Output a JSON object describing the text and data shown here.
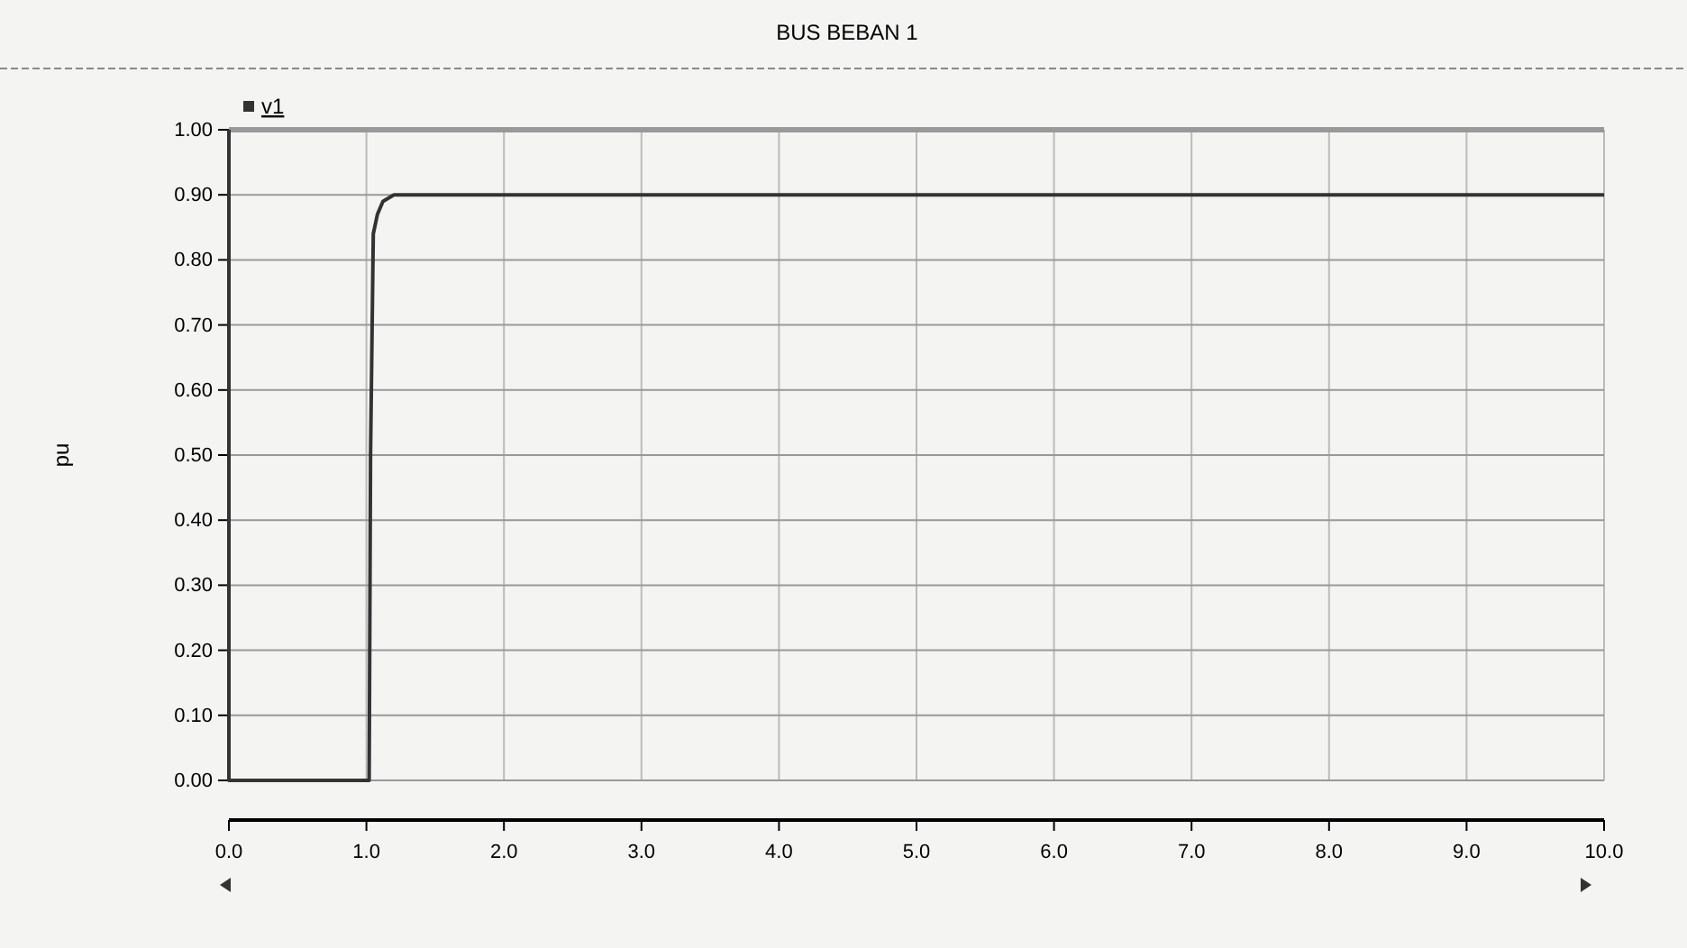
{
  "chart_data": {
    "type": "step",
    "title": "BUS BEBAN 1",
    "ylabel": "pu",
    "series": [
      {
        "name": "v1",
        "color": "#333333",
        "x": [
          0,
          0,
          1.02,
          1.03,
          1.05,
          1.08,
          1.12,
          1.2,
          10
        ],
        "values": [
          1,
          0,
          0,
          0.5,
          0.84,
          0.87,
          0.89,
          0.9,
          0.9
        ]
      }
    ],
    "xlim": [
      0,
      10
    ],
    "xticks": [
      {
        "value": 0,
        "label": "0.0"
      },
      {
        "value": 1,
        "label": "1.0"
      },
      {
        "value": 2,
        "label": "2.0"
      },
      {
        "value": 3,
        "label": "3.0"
      },
      {
        "value": 4,
        "label": "4.0"
      },
      {
        "value": 5,
        "label": "5.0"
      },
      {
        "value": 6,
        "label": "6.0"
      },
      {
        "value": 7,
        "label": "7.0"
      },
      {
        "value": 8,
        "label": "8.0"
      },
      {
        "value": 9,
        "label": "9.0"
      },
      {
        "value": 10,
        "label": "10.0"
      }
    ],
    "ylim": [
      0,
      1
    ],
    "yticks": [
      {
        "value": 0,
        "label": "0.00"
      },
      {
        "value": 0.1,
        "label": "0.10"
      },
      {
        "value": 0.2,
        "label": "0.20"
      },
      {
        "value": 0.3,
        "label": "0.30"
      },
      {
        "value": 0.4,
        "label": "0.40"
      },
      {
        "value": 0.5,
        "label": "0.50"
      },
      {
        "value": 0.6,
        "label": "0.60"
      },
      {
        "value": 0.7,
        "label": "0.70"
      },
      {
        "value": 0.8,
        "label": "0.80"
      },
      {
        "value": 0.9,
        "label": "0.90"
      },
      {
        "value": 1,
        "label": "1.00"
      }
    ],
    "grid": true,
    "legend": "top left",
    "marker": "none",
    "line_style": "solid"
  }
}
